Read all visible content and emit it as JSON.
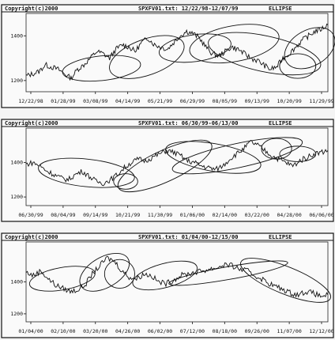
{
  "chart_data": [
    {
      "type": "line",
      "header": {
        "copyright": "Copyright(c)2000",
        "file": "SPXFV01.txt: 12/22/98-12/07/99",
        "method": "ELLIPSE"
      },
      "x_tick_labels": [
        "12/22/98",
        "01/28/99",
        "03/08/99",
        "04/14/99",
        "05/21/99",
        "06/29/99",
        "08/05/99",
        "09/13/99",
        "10/20/99",
        "11/29/99"
      ],
      "y_tick_labels": [
        "1200",
        "1400"
      ],
      "ylim": [
        1150,
        1500
      ],
      "series": [
        {
          "values": [
            1220,
            1230,
            1240,
            1270,
            1260,
            1250,
            1230,
            1210,
            1250,
            1270,
            1300,
            1330,
            1320,
            1300,
            1340,
            1360,
            1350,
            1330,
            1370,
            1390,
            1360,
            1350,
            1340,
            1370,
            1400,
            1420,
            1410,
            1390,
            1350,
            1320,
            1310,
            1330,
            1350,
            1340,
            1320,
            1300,
            1290,
            1270,
            1250,
            1260,
            1300,
            1320,
            1350,
            1380,
            1400,
            1420,
            1430,
            1450
          ]
        }
      ],
      "ellipses": [
        {
          "cx": 0.25,
          "cy": 1255,
          "rx": 0.13,
          "ry": 55,
          "rot": -6
        },
        {
          "cx": 0.4,
          "cy": 1305,
          "rx": 0.13,
          "ry": 80,
          "rot": -20
        },
        {
          "cx": 0.56,
          "cy": 1345,
          "rx": 0.12,
          "ry": 60,
          "rot": -8
        },
        {
          "cx": 0.69,
          "cy": 1365,
          "rx": 0.15,
          "ry": 80,
          "rot": -10
        },
        {
          "cx": 0.79,
          "cy": 1320,
          "rx": 0.19,
          "ry": 80,
          "rot": 12
        },
        {
          "cx": 0.9,
          "cy": 1265,
          "rx": 0.06,
          "ry": 55,
          "rot": 0
        },
        {
          "cx": 0.94,
          "cy": 1345,
          "rx": 0.09,
          "ry": 80,
          "rot": -30
        }
      ]
    },
    {
      "type": "line",
      "header": {
        "copyright": "Copyright(c)2000",
        "file": "SPXFV01.txt: 06/30/99-06/13/00",
        "method": "ELLIPSE"
      },
      "x_tick_labels": [
        "06/30/99",
        "08/04/99",
        "09/14/99",
        "10/21/99",
        "11/30/99",
        "01/06/00",
        "02/14/00",
        "03/22/00",
        "04/28/00",
        "06/06/00"
      ],
      "y_tick_labels": [
        "1200",
        "1400"
      ],
      "ylim": [
        1150,
        1600
      ],
      "series": [
        {
          "values": [
            1390,
            1400,
            1380,
            1350,
            1330,
            1310,
            1300,
            1330,
            1350,
            1320,
            1290,
            1280,
            1300,
            1330,
            1370,
            1400,
            1420,
            1410,
            1430,
            1450,
            1470,
            1460,
            1440,
            1410,
            1400,
            1380,
            1370,
            1360,
            1380,
            1420,
            1450,
            1480,
            1520,
            1500,
            1470,
            1440,
            1420,
            1400,
            1380,
            1410,
            1430,
            1450,
            1460,
            1470
          ]
        }
      ],
      "ellipses": [
        {
          "cx": 0.2,
          "cy": 1340,
          "rx": 0.16,
          "ry": 80,
          "rot": 6
        },
        {
          "cx": 0.33,
          "cy": 1290,
          "rx": 0.04,
          "ry": 45,
          "rot": 0
        },
        {
          "cx": 0.46,
          "cy": 1380,
          "rx": 0.17,
          "ry": 90,
          "rot": -25
        },
        {
          "cx": 0.62,
          "cy": 1430,
          "rx": 0.16,
          "ry": 80,
          "rot": 10
        },
        {
          "cx": 0.7,
          "cy": 1440,
          "rx": 0.22,
          "ry": 70,
          "rot": -12
        },
        {
          "cx": 0.83,
          "cy": 1480,
          "rx": 0.05,
          "ry": 60,
          "rot": 0
        },
        {
          "cx": 0.9,
          "cy": 1450,
          "rx": 0.06,
          "ry": 45,
          "rot": 0
        }
      ]
    },
    {
      "type": "line",
      "header": {
        "copyright": "Copyright(c)2000",
        "file": "SPXFV01.txt: 01/04/00-12/15/00",
        "method": "ELLIPSE"
      },
      "x_tick_labels": [
        "01/04/00",
        "02/10/00",
        "03/20/00",
        "04/26/00",
        "06/02/00",
        "07/12/00",
        "08/18/00",
        "09/26/00",
        "11/07/00",
        "12/12/00"
      ],
      "y_tick_labels": [
        "1200",
        "1400"
      ],
      "ylim": [
        1150,
        1650
      ],
      "series": [
        {
          "values": [
            1460,
            1440,
            1470,
            1420,
            1380,
            1360,
            1340,
            1350,
            1380,
            1450,
            1500,
            1550,
            1530,
            1470,
            1430,
            1420,
            1450,
            1440,
            1400,
            1390,
            1410,
            1440,
            1450,
            1460,
            1470,
            1480,
            1490,
            1510,
            1500,
            1480,
            1470,
            1440,
            1420,
            1390,
            1370,
            1350,
            1330,
            1320,
            1340,
            1330,
            1310,
            1320
          ]
        }
      ],
      "ellipses": [
        {
          "cx": 0.12,
          "cy": 1420,
          "rx": 0.11,
          "ry": 70,
          "rot": -10
        },
        {
          "cx": 0.26,
          "cy": 1460,
          "rx": 0.09,
          "ry": 95,
          "rot": -30
        },
        {
          "cx": 0.31,
          "cy": 1450,
          "rx": 0.05,
          "ry": 90,
          "rot": 0
        },
        {
          "cx": 0.46,
          "cy": 1440,
          "rx": 0.11,
          "ry": 75,
          "rot": -15
        },
        {
          "cx": 0.67,
          "cy": 1455,
          "rx": 0.2,
          "ry": 40,
          "rot": -10
        },
        {
          "cx": 0.86,
          "cy": 1410,
          "rx": 0.16,
          "ry": 85,
          "rot": 22
        }
      ]
    }
  ]
}
